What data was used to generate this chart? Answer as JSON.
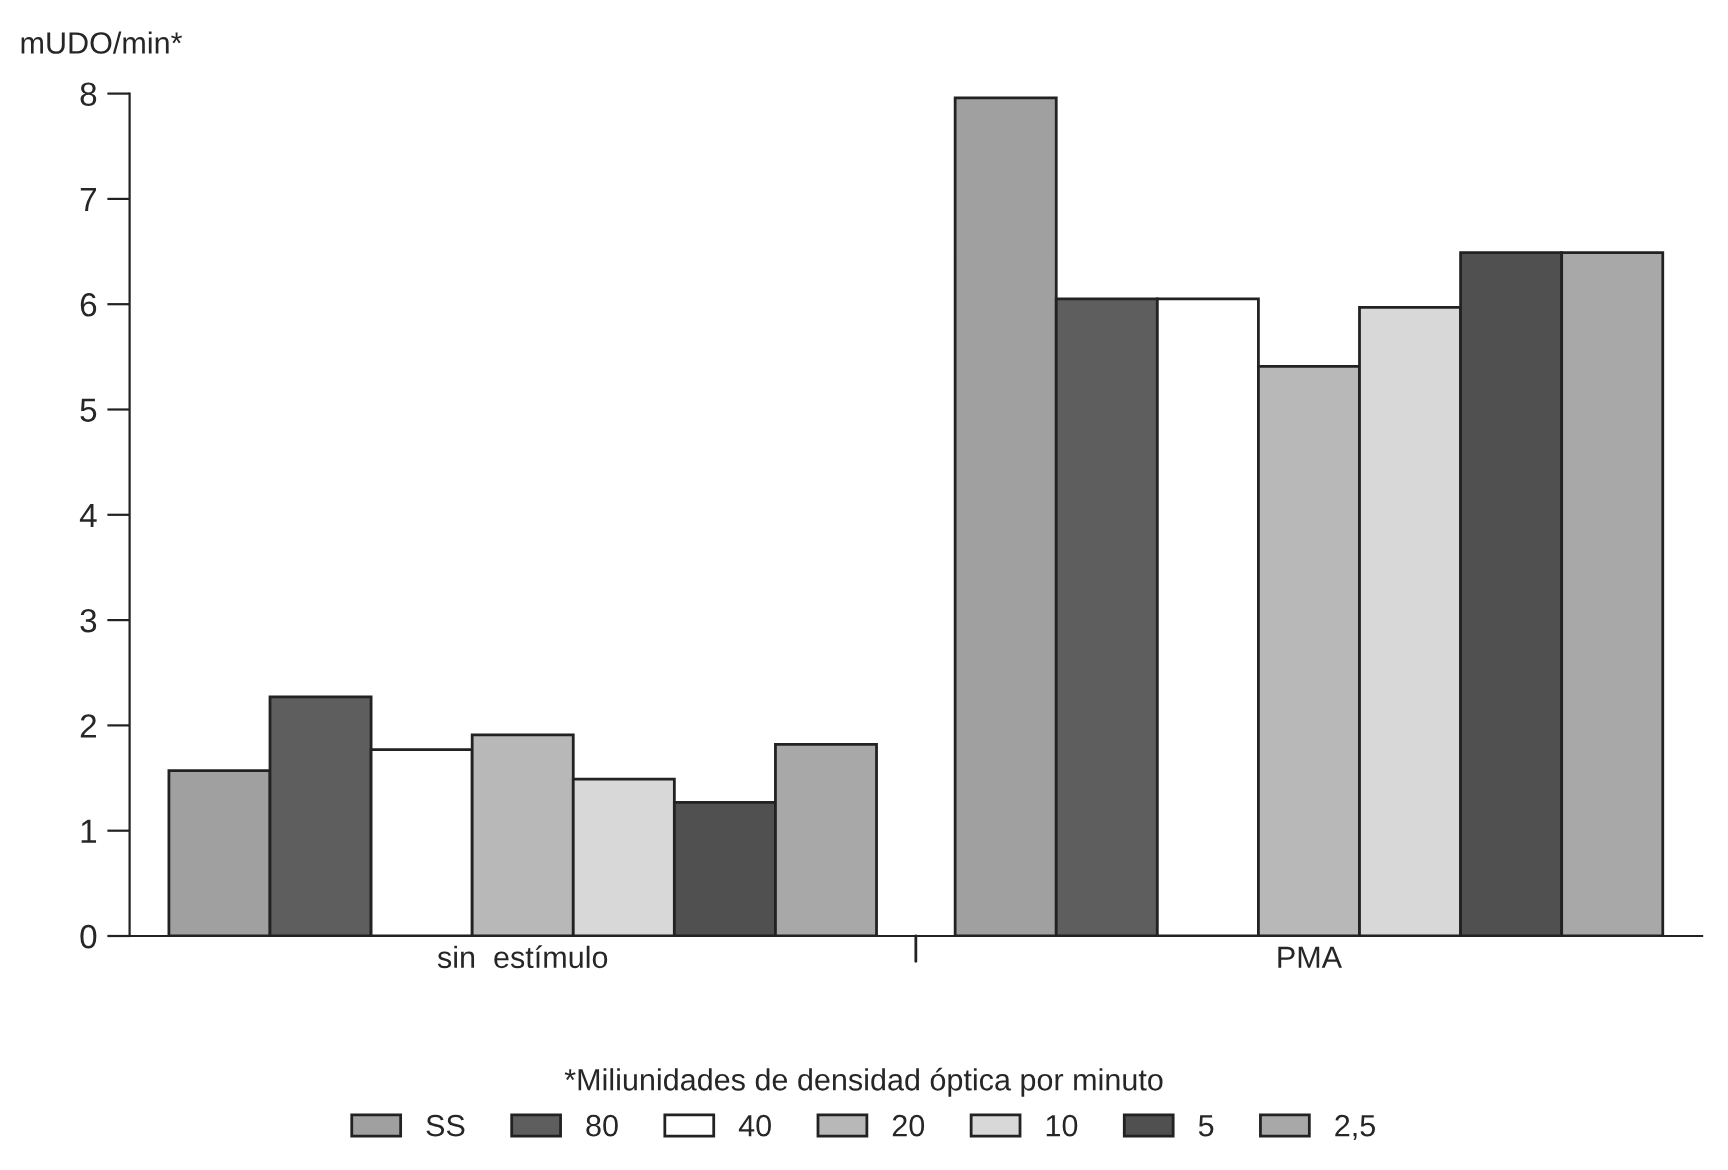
{
  "chart_data": {
    "type": "bar",
    "ylabel": "mUDO/min*",
    "categories": [
      "sin  estímulo",
      "PMA"
    ],
    "ylim": [
      0,
      8
    ],
    "yticks": [
      0,
      1,
      2,
      3,
      4,
      5,
      6,
      7,
      8
    ],
    "grid": false,
    "legend": "bottom",
    "annotations": [
      "*Miliunidades de densidad óptica por minuto"
    ],
    "series": [
      {
        "name": "SS",
        "color": "#a0a0a0",
        "values": [
          1.57,
          7.96
        ]
      },
      {
        "name": "80",
        "color": "#5e5e5e",
        "values": [
          2.27,
          6.05
        ]
      },
      {
        "name": "40",
        "color": "#ffffff",
        "values": [
          1.77,
          6.05
        ]
      },
      {
        "name": "20",
        "color": "#b8b8b8",
        "values": [
          1.91,
          5.41
        ]
      },
      {
        "name": "10",
        "color": "#d8d8d8",
        "values": [
          1.49,
          5.97
        ]
      },
      {
        "name": "5",
        "color": "#505050",
        "values": [
          1.27,
          6.49
        ]
      },
      {
        "name": "2,5",
        "color": "#a8a8a8",
        "values": [
          1.82,
          6.49
        ]
      }
    ]
  }
}
